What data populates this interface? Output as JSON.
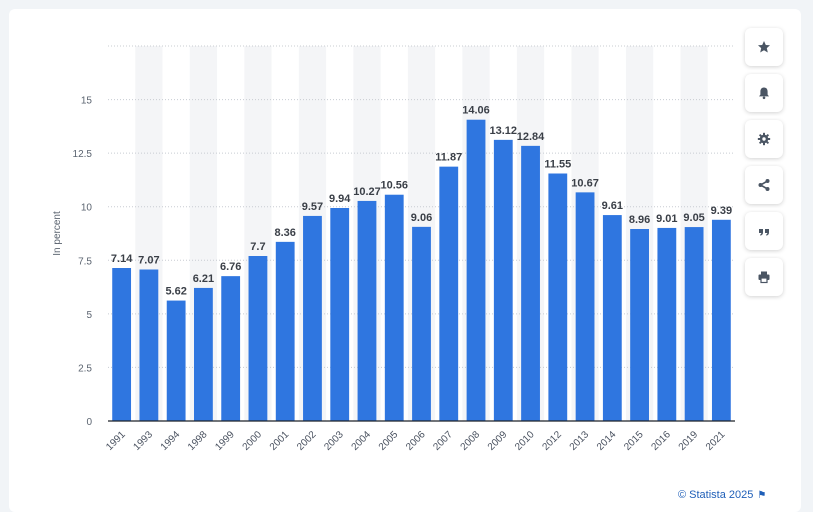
{
  "chart_data": {
    "type": "bar",
    "categories": [
      "1991",
      "1993",
      "1994",
      "1998",
      "1999",
      "2000",
      "2001",
      "2002",
      "2003",
      "2004",
      "2005",
      "2006",
      "2007",
      "2008",
      "2009",
      "2010",
      "2012",
      "2013",
      "2014",
      "2015",
      "2016",
      "2019",
      "2021"
    ],
    "values": [
      7.14,
      7.07,
      5.62,
      6.21,
      6.76,
      7.7,
      8.36,
      9.57,
      9.94,
      10.27,
      10.56,
      9.06,
      11.87,
      14.06,
      13.12,
      12.84,
      11.55,
      10.67,
      9.61,
      8.96,
      9.01,
      9.05,
      9.39
    ],
    "value_labels": [
      "7.14",
      "7.07",
      "5.62",
      "6.21",
      "6.76",
      "7.7",
      "8.36",
      "9.57",
      "9.94",
      "10.27",
      "10.56",
      "9.06",
      "11.87",
      "14.06",
      "13.12",
      "12.84",
      "11.55",
      "10.67",
      "9.61",
      "8.96",
      "9.01",
      "9.05",
      "9.39"
    ],
    "yticks": [
      "0",
      "2.5",
      "5",
      "7.5",
      "10",
      "12.5",
      "15"
    ],
    "ylabel": "In percent",
    "xlabel": "",
    "title": "",
    "ylim": [
      0,
      17.5
    ],
    "grid": true,
    "bar_color": "#2f76e0"
  },
  "toolbar": {
    "buttons": [
      {
        "name": "star-icon",
        "label": "favorite"
      },
      {
        "name": "bell-icon",
        "label": "notification"
      },
      {
        "name": "gear-icon",
        "label": "settings"
      },
      {
        "name": "share-icon",
        "label": "share"
      },
      {
        "name": "quote-icon",
        "label": "cite"
      },
      {
        "name": "print-icon",
        "label": "print"
      }
    ]
  },
  "credit": {
    "text": "© Statista 2025",
    "flag": "⚑"
  },
  "colors": {
    "accent": "#2f76e0",
    "link": "#1f5fb8",
    "icon": "#4a5563"
  }
}
